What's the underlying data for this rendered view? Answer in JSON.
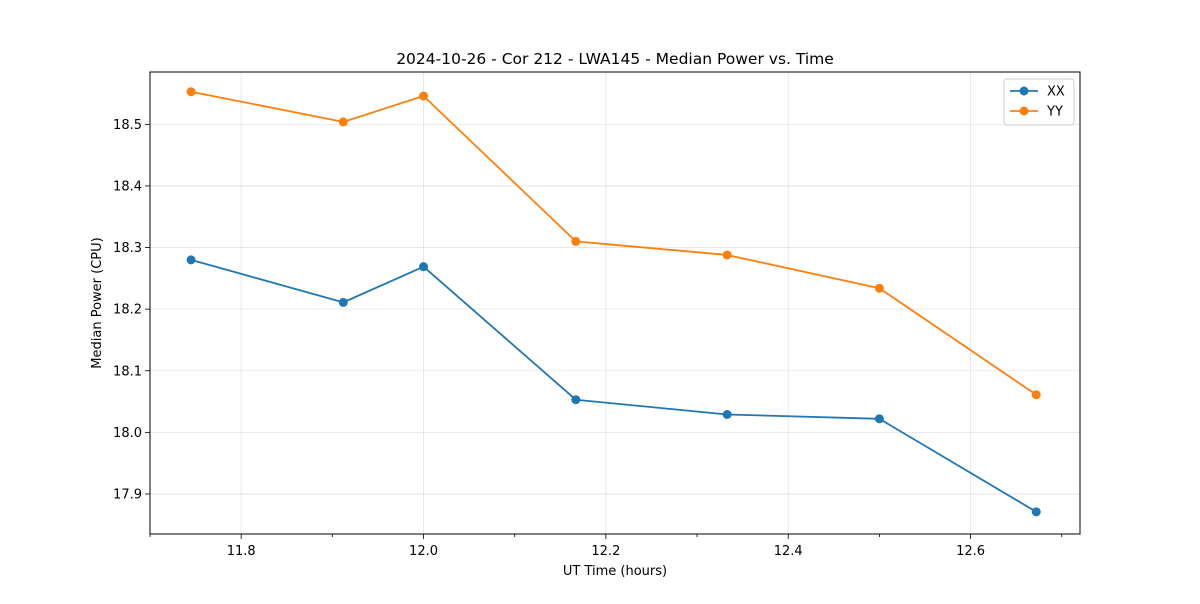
{
  "chart_data": {
    "type": "line",
    "title": "2024-10-26 - Cor 212 - LWA145 - Median Power vs. Time",
    "xlabel": "UT Time (hours)",
    "ylabel": "Median Power (CPU)",
    "xlim": [
      11.7,
      12.72
    ],
    "ylim": [
      17.835,
      18.585
    ],
    "x_ticks": [
      11.8,
      12.0,
      12.2,
      12.4,
      12.6
    ],
    "x_tick_labels": [
      "11.8",
      "12.0",
      "12.2",
      "12.4",
      "12.6"
    ],
    "x_minor_ticks": [
      11.7,
      11.9,
      12.1,
      12.3,
      12.5,
      12.7
    ],
    "y_ticks": [
      17.9,
      18.0,
      18.1,
      18.2,
      18.3,
      18.4,
      18.5
    ],
    "y_tick_labels": [
      "17.9",
      "18.0",
      "18.1",
      "18.2",
      "18.3",
      "18.4",
      "18.5"
    ],
    "grid": true,
    "legend_position": "top-right",
    "x": [
      11.745,
      11.912,
      12.0,
      12.167,
      12.333,
      12.5,
      12.672
    ],
    "series": [
      {
        "name": "XX",
        "color": "#1f77b4",
        "values": [
          18.28,
          18.211,
          18.269,
          18.053,
          18.029,
          18.022,
          17.871
        ]
      },
      {
        "name": "YY",
        "color": "#ff7f0e",
        "values": [
          18.553,
          18.504,
          18.546,
          18.31,
          18.288,
          18.234,
          18.061
        ]
      }
    ]
  }
}
